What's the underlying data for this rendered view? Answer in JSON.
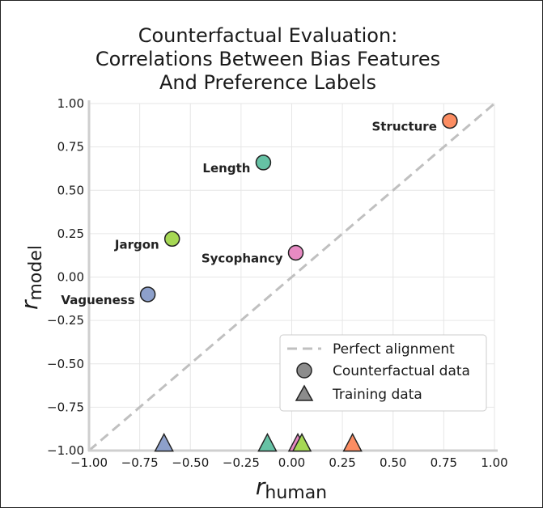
{
  "chart_data": {
    "type": "scatter",
    "title_lines": [
      "Counterfactual Evaluation:",
      "Correlations Between Bias Features",
      "And Preference Labels"
    ],
    "xlabel": {
      "base": "r",
      "sub": "human"
    },
    "ylabel": {
      "base": "r",
      "sub": "model"
    },
    "xlim": [
      -1.0,
      1.0
    ],
    "ylim": [
      -1.0,
      1.0
    ],
    "xticks": [
      -1.0,
      -0.75,
      -0.5,
      -0.25,
      0.0,
      0.25,
      0.5,
      0.75,
      1.0
    ],
    "xtick_labels": [
      "−1.00",
      "−0.75",
      "−0.50",
      "−0.25",
      "0.00",
      "0.25",
      "0.50",
      "0.75",
      "1.00"
    ],
    "yticks": [
      1.0,
      0.75,
      0.5,
      0.25,
      0.0,
      -0.25,
      -0.5,
      -0.75,
      -1.0
    ],
    "ytick_labels": [
      "1.00",
      "0.75",
      "0.50",
      "0.25",
      "0.00",
      "−0.25",
      "−0.50",
      "−0.75",
      "−1.00"
    ],
    "grid": true,
    "legend": {
      "placement": "lower-right",
      "entries": [
        {
          "label": "Perfect alignment",
          "marker": "dashed-line"
        },
        {
          "label": "Counterfactual data",
          "marker": "circle"
        },
        {
          "label": "Training data",
          "marker": "triangle"
        }
      ]
    },
    "diagonal": {
      "from": [
        -1.0,
        -1.0
      ],
      "to": [
        1.0,
        1.0
      ],
      "color": "#c0c0c0"
    },
    "counterfactual_points": [
      {
        "label": "Structure",
        "x": 0.78,
        "y": 0.9,
        "color": "#fc8d62",
        "label_side": "left"
      },
      {
        "label": "Length",
        "x": -0.14,
        "y": 0.66,
        "color": "#66c2a5",
        "label_side": "left"
      },
      {
        "label": "Jargon",
        "x": -0.59,
        "y": 0.22,
        "color": "#a6d854",
        "label_side": "left"
      },
      {
        "label": "Sycophancy",
        "x": 0.02,
        "y": 0.14,
        "color": "#e78ac3",
        "label_side": "left"
      },
      {
        "label": "Vagueness",
        "x": -0.71,
        "y": -0.1,
        "color": "#8da0cb",
        "label_side": "left"
      }
    ],
    "training_points": [
      {
        "x": -0.63,
        "y": -0.97,
        "color": "#8da0cb"
      },
      {
        "x": -0.12,
        "y": -0.97,
        "color": "#66c2a5"
      },
      {
        "x": 0.03,
        "y": -0.97,
        "color": "#e78ac3"
      },
      {
        "x": 0.05,
        "y": -0.97,
        "color": "#a6d854"
      },
      {
        "x": 0.3,
        "y": -0.97,
        "color": "#fc8d62"
      }
    ]
  }
}
